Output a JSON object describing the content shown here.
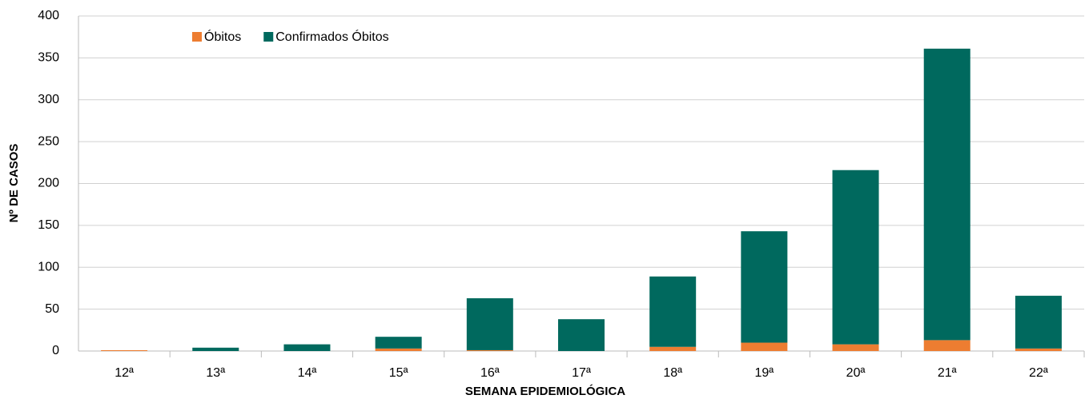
{
  "chart_data": {
    "type": "stacked_bar",
    "x_label": "SEMANA EPIDEMIOLÓGICA",
    "y_label": "Nº DE CASOS",
    "categories": [
      "12ª",
      "13ª",
      "14ª",
      "15ª",
      "16ª",
      "17ª",
      "18ª",
      "19ª",
      "20ª",
      "21ª",
      "22ª"
    ],
    "series": [
      {
        "name": "Óbitos",
        "color": "#ED7D31",
        "values": [
          1,
          0,
          0,
          3,
          1,
          0,
          5,
          10,
          8,
          13,
          3
        ]
      },
      {
        "name": "Confirmados Óbitos",
        "color": "#00695E",
        "values": [
          0,
          4,
          8,
          14,
          62,
          38,
          84,
          133,
          208,
          348,
          63
        ]
      }
    ],
    "ylim": [
      0,
      400
    ],
    "yticks": [
      0,
      50,
      100,
      150,
      200,
      250,
      300,
      350,
      400
    ],
    "grid": true,
    "legend": "top-left"
  }
}
